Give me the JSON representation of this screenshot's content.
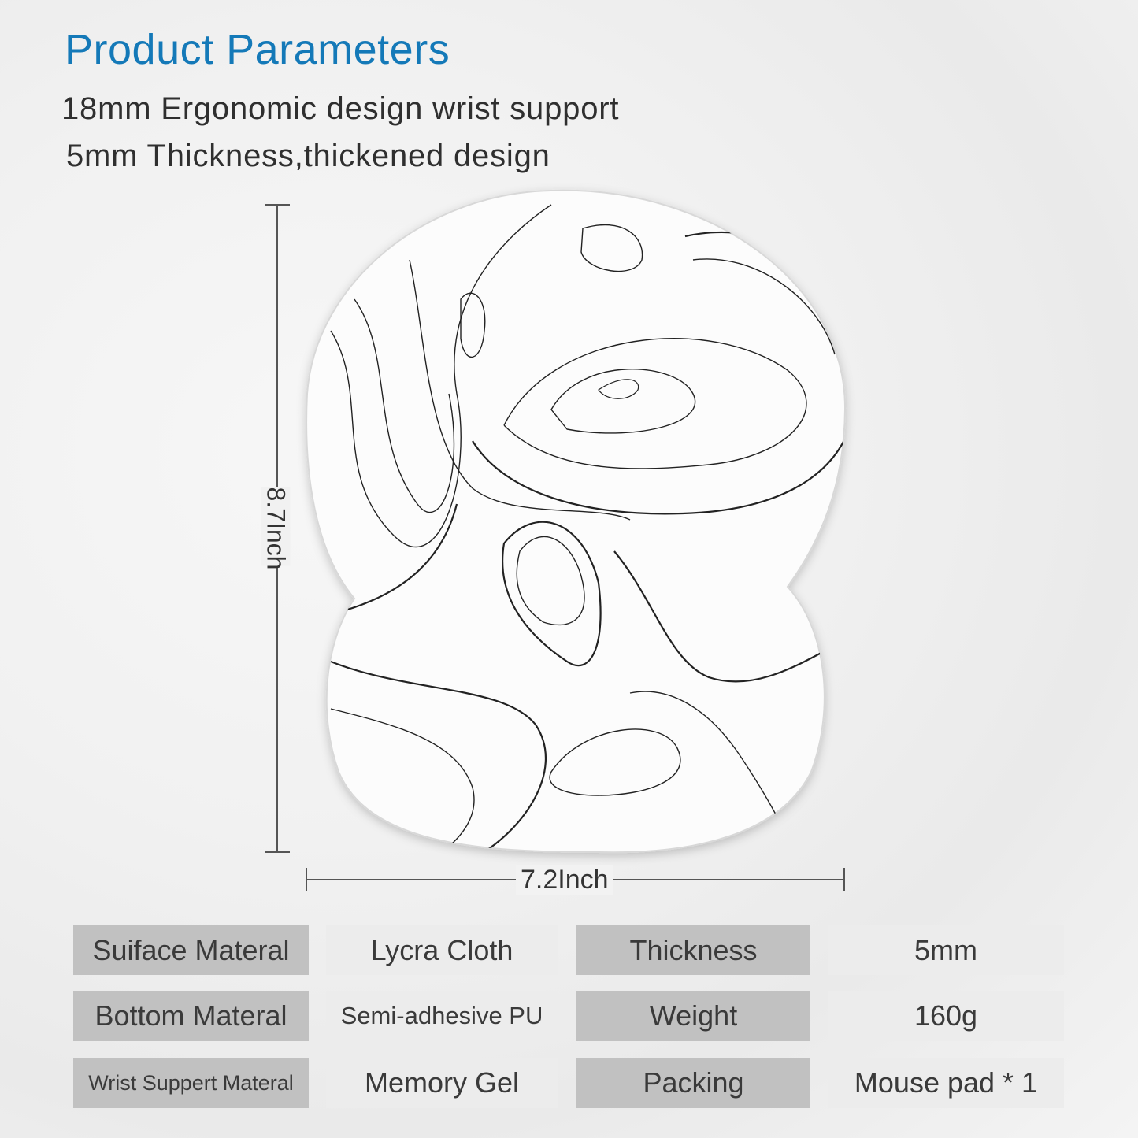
{
  "header": {
    "title": "Product Parameters",
    "features": [
      "18mm Ergonomic design wrist support",
      "5mm Thickness,thickened design"
    ]
  },
  "dimensions": {
    "height_label": "8.7Inch",
    "width_label": "7.2Inch"
  },
  "specs": [
    {
      "label": "Suiface Materal",
      "value": "Lycra Cloth",
      "label2": "Thickness",
      "value2": "5mm"
    },
    {
      "label": "Bottom Materal",
      "value": "Semi-adhesive PU",
      "label2": "Weight",
      "value2": "160g"
    },
    {
      "label": "Wrist Suppert Materal",
      "value": "Memory Gel",
      "label2": "Packing",
      "value2": "Mouse pad * 1"
    }
  ],
  "colors": {
    "title": "#1479b8",
    "label_cell": "#c1c1c1",
    "value_cell": "#ececec"
  }
}
